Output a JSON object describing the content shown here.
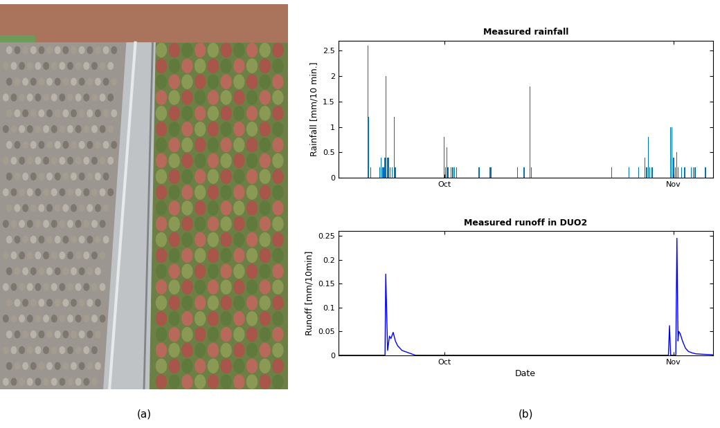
{
  "panel_labels": [
    "(a)",
    "(b)"
  ],
  "chart_data": [
    {
      "type": "bar",
      "title": "Measured rainfall",
      "y_label": "Rainfall [mm/10 min.]",
      "color": "#0072bd",
      "x": [
        263.7,
        263.8,
        264.05,
        265.3,
        265.5,
        265.65,
        265.8,
        266.0,
        266.1,
        266.35,
        266.5,
        266.7,
        267.0,
        267.25,
        267.4,
        274.0,
        274.2,
        274.35,
        274.5,
        274.9,
        275.15,
        275.4,
        275.7,
        278.7,
        280.2,
        280.3,
        283.9,
        284.8,
        285.6,
        285.8,
        296.6,
        299.0,
        300.3,
        301.1,
        301.35,
        301.6,
        301.8,
        302.1,
        304.6,
        304.8,
        305.0,
        305.25,
        305.45,
        305.6,
        306.1,
        306.5,
        307.4,
        307.7,
        307.9,
        309.3
      ],
      "values": [
        2.6,
        1.2,
        0.2,
        0.2,
        0.4,
        0.2,
        0.2,
        0.4,
        2.0,
        0.4,
        0.4,
        0.2,
        0.2,
        1.2,
        0.2,
        0.8,
        0.2,
        0.6,
        0.2,
        0.2,
        0.2,
        0.2,
        0.2,
        0.2,
        0.2,
        0.2,
        0.2,
        0.2,
        1.8,
        0.2,
        0.2,
        0.2,
        0.2,
        0.4,
        0.2,
        0.8,
        0.2,
        0.2,
        1.0,
        1.0,
        0.4,
        0.2,
        0.5,
        0.2,
        0.2,
        0.2,
        0.2,
        0.2,
        0.2,
        0.2
      ],
      "xlim": [
        259.7,
        310.3
      ],
      "xticks": [
        {
          "value": 274,
          "label": "Oct"
        },
        {
          "value": 305,
          "label": "Nov"
        }
      ],
      "ylim": [
        0,
        2.7
      ],
      "yticks": [
        0,
        0.5,
        1,
        1.5,
        2,
        2.5
      ]
    },
    {
      "type": "line",
      "title": "Measured runoff in DUO2",
      "x_label": "Date",
      "y_label": "Runoff [mm/10min]",
      "color": "#0000ff",
      "x": [
        259.7,
        266.0,
        266.1,
        266.35,
        266.6,
        266.8,
        267.1,
        267.4,
        267.7,
        268.3,
        269.2,
        270.1,
        304.3,
        304.45,
        304.6,
        305.3,
        305.45,
        305.6,
        305.7,
        305.9,
        306.2,
        306.6,
        307.0,
        307.5,
        308.0,
        309.0,
        310.3
      ],
      "values": [
        0,
        0,
        0.17,
        0.01,
        0.04,
        0.035,
        0.048,
        0.03,
        0.02,
        0.01,
        0.005,
        0,
        0,
        0.062,
        0,
        0,
        0.245,
        0.03,
        0.05,
        0.045,
        0.03,
        0.015,
        0.008,
        0.005,
        0.003,
        0.002,
        0.001
      ],
      "xlim": [
        259.7,
        310.3
      ],
      "xticks": [
        {
          "value": 274,
          "label": "Oct"
        },
        {
          "value": 305,
          "label": "Nov"
        }
      ],
      "ylim": [
        0,
        0.26
      ],
      "yticks": [
        0,
        0.05,
        0.1,
        0.15,
        0.2,
        0.25
      ]
    }
  ]
}
